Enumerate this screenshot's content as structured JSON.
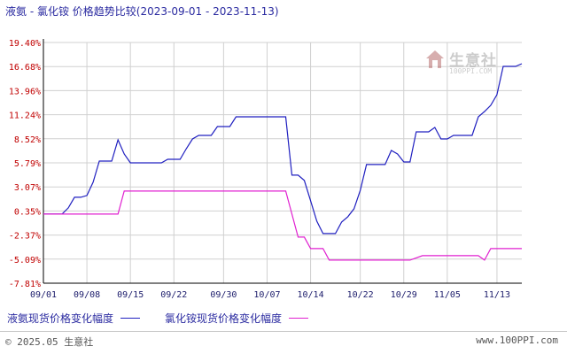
{
  "title": "液氨 - 氯化铵 价格趋势比较(2023-09-01 - 2023-11-13)",
  "watermark": {
    "brand": "生意社",
    "site": "100PPI.COM"
  },
  "legend": [
    {
      "label": "液氨现货价格变化幅度",
      "color": "#2020c0"
    },
    {
      "label": "氯化铵现货价格变化幅度",
      "color": "#e020d0"
    }
  ],
  "footer": {
    "left": "© 2025.05 生意社",
    "right": "www.100PPI.com"
  },
  "colors": {
    "axis": "#000000",
    "grid": "#d0d0d0",
    "ytick": "#c00000",
    "xtick": "#1a1a6a"
  },
  "chart_data": {
    "type": "line",
    "title": "液氨 - 氯化铵 价格趋势比较(2023-09-01 - 2023-11-13)",
    "xlabel": "",
    "ylabel": "",
    "x_ticks": [
      "09/01",
      "09/08",
      "09/15",
      "09/22",
      "09/30",
      "10/07",
      "10/14",
      "10/22",
      "10/29",
      "11/05",
      "11/13"
    ],
    "y_ticks": [
      "19.40%",
      "16.68%",
      "13.96%",
      "11.24%",
      "8.52%",
      "5.79%",
      "3.07%",
      "0.35%",
      "-2.37%",
      "-5.09%",
      "-7.81%"
    ],
    "ylim": [
      -7.81,
      19.4
    ],
    "xlim": [
      "2023-09-01",
      "2023-11-13"
    ],
    "grid": true,
    "legend_position": "bottom",
    "series": [
      {
        "name": "液氨现货价格变化幅度",
        "color": "#2020c0",
        "points": [
          [
            "2023-09-01",
            0.0
          ],
          [
            "2023-09-02",
            0.0
          ],
          [
            "2023-09-03",
            0.0
          ],
          [
            "2023-09-04",
            0.0
          ],
          [
            "2023-09-05",
            0.7
          ],
          [
            "2023-09-06",
            1.9
          ],
          [
            "2023-09-07",
            1.9
          ],
          [
            "2023-09-08",
            2.1
          ],
          [
            "2023-09-09",
            3.6
          ],
          [
            "2023-09-10",
            6.0
          ],
          [
            "2023-09-11",
            6.0
          ],
          [
            "2023-09-12",
            6.0
          ],
          [
            "2023-09-13",
            8.4
          ],
          [
            "2023-09-14",
            6.8
          ],
          [
            "2023-09-15",
            5.8
          ],
          [
            "2023-09-18",
            5.8
          ],
          [
            "2023-09-19",
            5.8
          ],
          [
            "2023-09-20",
            5.8
          ],
          [
            "2023-09-21",
            6.2
          ],
          [
            "2023-09-22",
            6.2
          ],
          [
            "2023-09-23",
            6.2
          ],
          [
            "2023-09-24",
            7.4
          ],
          [
            "2023-09-25",
            8.5
          ],
          [
            "2023-09-26",
            8.9
          ],
          [
            "2023-09-27",
            8.9
          ],
          [
            "2023-09-28",
            8.9
          ],
          [
            "2023-09-29",
            9.9
          ],
          [
            "2023-09-30",
            9.9
          ],
          [
            "2023-10-01",
            9.9
          ],
          [
            "2023-10-02",
            11.0
          ],
          [
            "2023-10-05",
            11.0
          ],
          [
            "2023-10-06",
            11.0
          ],
          [
            "2023-10-07",
            11.0
          ],
          [
            "2023-10-08",
            11.0
          ],
          [
            "2023-10-09",
            11.0
          ],
          [
            "2023-10-10",
            11.0
          ],
          [
            "2023-10-11",
            4.4
          ],
          [
            "2023-10-12",
            4.4
          ],
          [
            "2023-10-13",
            3.8
          ],
          [
            "2023-10-14",
            1.5
          ],
          [
            "2023-10-15",
            -0.8
          ],
          [
            "2023-10-16",
            -2.2
          ],
          [
            "2023-10-17",
            -2.2
          ],
          [
            "2023-10-18",
            -2.2
          ],
          [
            "2023-10-19",
            -0.9
          ],
          [
            "2023-10-20",
            -0.3
          ],
          [
            "2023-10-21",
            0.6
          ],
          [
            "2023-10-22",
            2.7
          ],
          [
            "2023-10-23",
            5.6
          ],
          [
            "2023-10-24",
            5.6
          ],
          [
            "2023-10-25",
            5.6
          ],
          [
            "2023-10-26",
            5.6
          ],
          [
            "2023-10-27",
            7.2
          ],
          [
            "2023-10-28",
            6.8
          ],
          [
            "2023-10-29",
            5.9
          ],
          [
            "2023-10-30",
            5.9
          ],
          [
            "2023-10-31",
            9.3
          ],
          [
            "2023-11-01",
            9.3
          ],
          [
            "2023-11-02",
            9.3
          ],
          [
            "2023-11-03",
            9.8
          ],
          [
            "2023-11-04",
            8.5
          ],
          [
            "2023-11-05",
            8.5
          ],
          [
            "2023-11-06",
            8.9
          ],
          [
            "2023-11-07",
            8.9
          ],
          [
            "2023-11-08",
            8.9
          ],
          [
            "2023-11-09",
            8.9
          ],
          [
            "2023-11-10",
            11.0
          ],
          [
            "2023-11-11",
            11.6
          ],
          [
            "2023-11-12",
            12.3
          ],
          [
            "2023-11-13",
            13.5
          ],
          [
            "2023-11-14",
            16.7
          ],
          [
            "2023-11-15",
            16.7
          ],
          [
            "2023-11-16",
            16.7
          ],
          [
            "2023-11-17",
            17.0
          ]
        ]
      },
      {
        "name": "氯化铵现货价格变化幅度",
        "color": "#e020d0",
        "points": [
          [
            "2023-09-01",
            0.0
          ],
          [
            "2023-09-12",
            0.0
          ],
          [
            "2023-09-13",
            0.0
          ],
          [
            "2023-09-14",
            2.6
          ],
          [
            "2023-10-10",
            2.6
          ],
          [
            "2023-10-11",
            0.0
          ],
          [
            "2023-10-12",
            -2.6
          ],
          [
            "2023-10-13",
            -2.6
          ],
          [
            "2023-10-14",
            -3.9
          ],
          [
            "2023-10-15",
            -3.9
          ],
          [
            "2023-10-16",
            -3.9
          ],
          [
            "2023-10-17",
            -5.2
          ],
          [
            "2023-10-30",
            -5.2
          ],
          [
            "2023-11-01",
            -4.7
          ],
          [
            "2023-11-10",
            -4.7
          ],
          [
            "2023-11-11",
            -5.2
          ],
          [
            "2023-11-12",
            -3.9
          ],
          [
            "2023-11-17",
            -3.9
          ]
        ]
      }
    ]
  }
}
